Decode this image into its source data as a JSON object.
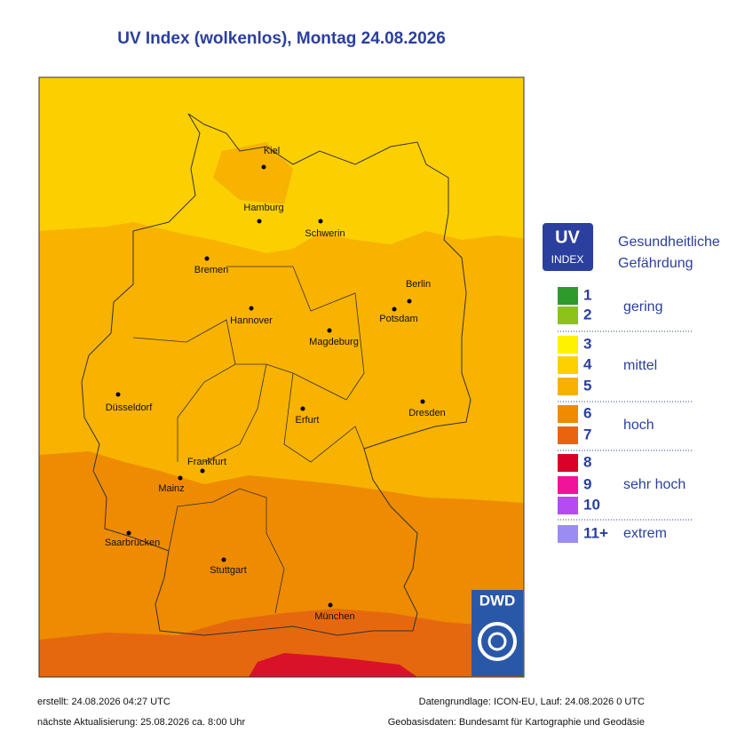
{
  "title": "UV Index (wolkenlos), Montag 24.08.2026",
  "cities": [
    "Kiel",
    "Hamburg",
    "Schwerin",
    "Bremen",
    "Berlin",
    "Potsdam",
    "Hannover",
    "Magdeburg",
    "Düsseldorf",
    "Erfurt",
    "Dresden",
    "Frankfurt",
    "Mainz",
    "Saarbrücken",
    "Stuttgart",
    "München"
  ],
  "legend": {
    "badge_top": "UV",
    "badge_bottom": "INDEX",
    "heading": [
      "Gesundheitliche",
      "Gefährdung"
    ],
    "levels": [
      {
        "label": "1",
        "color": "#2f9a2c"
      },
      {
        "label": "2",
        "color": "#8cc21a"
      },
      {
        "label": "3",
        "color": "#fff200"
      },
      {
        "label": "4",
        "color": "#fdd000"
      },
      {
        "label": "5",
        "color": "#f9b100"
      },
      {
        "label": "6",
        "color": "#f08b00"
      },
      {
        "label": "7",
        "color": "#e8640f"
      },
      {
        "label": "8",
        "color": "#d9002a"
      },
      {
        "label": "9",
        "color": "#f0149a"
      },
      {
        "label": "10",
        "color": "#b44cf0"
      },
      {
        "label": "11+",
        "color": "#9b8cf2"
      }
    ],
    "categories": [
      "gering",
      "mittel",
      "hoch",
      "sehr hoch",
      "extrem"
    ]
  },
  "logo": "DWD",
  "footer": {
    "created": "erstellt: 24.08.2026 04:27 UTC",
    "next": "nächste Aktualisierung:  25.08.2026 ca. 8:00 Uhr",
    "source": "Datengrundlage: ICON-EU, Lauf: 24.08.2026 0 UTC",
    "geo": "Geobasisdaten: Bundesamt für Kartographie und Geodäsie"
  }
}
